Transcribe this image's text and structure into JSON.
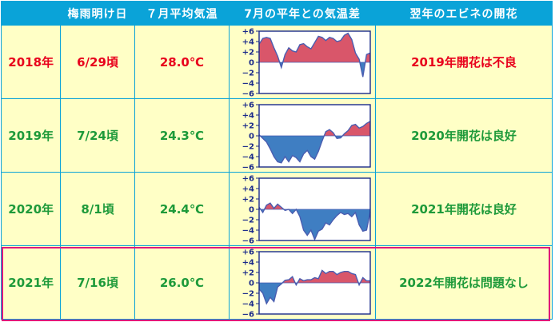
{
  "header": {
    "year": "",
    "rainy_end": "梅雨明け日",
    "july_avg": "７月平均気温",
    "anomaly": "7月の平年との気温差",
    "bloom": "翌年のエビネの開花"
  },
  "axis_ticks": [
    "+6",
    "+4",
    "+2",
    "0",
    "−2",
    "−4",
    "−6"
  ],
  "colors": {
    "header_bg": "#0aa3d8",
    "cell_bg": "#ffffc6",
    "positive_fill": "#d9566a",
    "negative_fill": "#3f7ec2",
    "highlight_border": "#e0187a",
    "text_red": "#e8001c",
    "text_green": "#1e9a3a"
  },
  "rows": [
    {
      "year": "2018年",
      "date": "6/29頃",
      "temp": "28.0℃",
      "bloom": "2019年開花は不良",
      "text_color": "#e8001c"
    },
    {
      "year": "2019年",
      "date": "7/24頃",
      "temp": "24.3℃",
      "bloom": "2020年開花は良好",
      "text_color": "#1e9a3a"
    },
    {
      "year": "2020年",
      "date": "8/1頃",
      "temp": "24.4℃",
      "bloom": "2021年開花は良好",
      "text_color": "#1e9a3a"
    },
    {
      "year": "2021年",
      "date": "7/16頃",
      "temp": "26.0℃",
      "bloom": "2022年開花は問題なし",
      "text_color": "#1e9a3a"
    }
  ],
  "chart_data": [
    {
      "type": "area",
      "ylim": [
        -6,
        6
      ],
      "y_ticks": [
        6,
        4,
        2,
        0,
        -2,
        -4,
        -6
      ],
      "x": [
        1,
        2,
        3,
        4,
        5,
        6,
        7,
        8,
        9,
        10,
        11,
        12,
        13,
        14,
        15,
        16,
        17,
        18,
        19,
        20,
        21,
        22,
        23,
        24,
        25,
        26,
        27,
        28,
        29,
        30,
        31
      ],
      "series": [
        {
          "values": [
            3.5,
            4.6,
            4.8,
            4.6,
            2.8,
            1.2,
            -1.0,
            1.5,
            2.8,
            2.2,
            2.0,
            3.4,
            3.6,
            3.0,
            2.6,
            3.8,
            5.0,
            4.8,
            4.2,
            4.8,
            4.6,
            4.0,
            4.2,
            5.2,
            5.6,
            4.4,
            1.8,
            0.6,
            -2.8,
            1.5,
            1.8
          ]
        }
      ]
    },
    {
      "type": "area",
      "ylim": [
        -6,
        6
      ],
      "y_ticks": [
        6,
        4,
        2,
        0,
        -2,
        -4,
        -6
      ],
      "x": [
        1,
        2,
        3,
        4,
        5,
        6,
        7,
        8,
        9,
        10,
        11,
        12,
        13,
        14,
        15,
        16,
        17,
        18,
        19,
        20,
        21,
        22,
        23,
        24,
        25,
        26,
        27,
        28,
        29,
        30,
        31
      ],
      "series": [
        {
          "values": [
            0.2,
            -0.5,
            -1.2,
            -2.5,
            -4.0,
            -5.0,
            -5.2,
            -4.0,
            -5.0,
            -3.8,
            -4.2,
            -5.0,
            -3.5,
            -2.8,
            -4.0,
            -4.5,
            -3.0,
            -1.0,
            0.8,
            1.2,
            0.6,
            -0.5,
            -0.4,
            0.4,
            1.0,
            2.0,
            2.2,
            1.5,
            1.8,
            2.4,
            2.8
          ]
        }
      ]
    },
    {
      "type": "area",
      "ylim": [
        -6,
        6
      ],
      "y_ticks": [
        6,
        4,
        2,
        0,
        -2,
        -4,
        -6
      ],
      "x": [
        1,
        2,
        3,
        4,
        5,
        6,
        7,
        8,
        9,
        10,
        11,
        12,
        13,
        14,
        15,
        16,
        17,
        18,
        19,
        20,
        21,
        22,
        23,
        24,
        25,
        26,
        27,
        28,
        29,
        30,
        31
      ],
      "series": [
        {
          "values": [
            0.4,
            -0.6,
            0.8,
            1.2,
            0.2,
            1.0,
            0.4,
            -0.2,
            0.0,
            -0.8,
            0.0,
            -1.4,
            -4.0,
            -5.0,
            -4.0,
            -5.8,
            -4.2,
            -3.8,
            -2.6,
            -3.0,
            -2.0,
            -1.2,
            -0.6,
            -1.0,
            -0.8,
            -1.4,
            -0.6,
            -3.0,
            -4.2,
            -4.0,
            -0.5
          ]
        }
      ]
    },
    {
      "type": "area",
      "ylim": [
        -6,
        6
      ],
      "y_ticks": [
        6,
        4,
        2,
        0,
        -2,
        -4,
        -6
      ],
      "x": [
        1,
        2,
        3,
        4,
        5,
        6,
        7,
        8,
        9,
        10,
        11,
        12,
        13,
        14,
        15,
        16,
        17,
        18,
        19,
        20,
        21,
        22,
        23,
        24,
        25,
        26,
        27,
        28,
        29,
        30,
        31
      ],
      "series": [
        {
          "values": [
            -1.2,
            -2.0,
            -4.0,
            -2.8,
            -3.6,
            -0.8,
            -0.2,
            0.5,
            0.6,
            1.2,
            -0.4,
            0.8,
            0.4,
            0.6,
            0.6,
            1.0,
            0.8,
            2.4,
            1.8,
            2.2,
            2.2,
            1.6,
            2.0,
            2.2,
            2.2,
            1.8,
            1.6,
            -0.4,
            1.0,
            0.4,
            0.4
          ]
        }
      ]
    }
  ]
}
